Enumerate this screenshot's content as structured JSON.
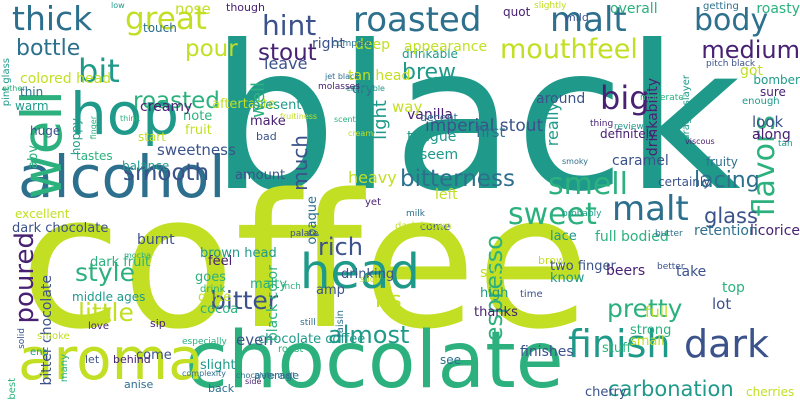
{
  "palette": {
    "yellowgreen": "#c2df23",
    "green": "#2cb17e",
    "teal": "#1f9a8a",
    "blue": "#2d708e",
    "indigo": "#3b528b",
    "purple": "#482173",
    "lightgreen": "#6ece58"
  },
  "words": [
    "black",
    "coffee",
    "chocolate",
    "aroma",
    "alcohol",
    "hop",
    "well",
    "head",
    "finish",
    "dark",
    "roasted",
    "malt",
    "thick",
    "great",
    "hint",
    "body",
    "mouthfeel",
    "bit",
    "pour",
    "stout",
    "medium",
    "brew",
    "big",
    "smell",
    "sweet",
    "malt",
    "flavors",
    "poured",
    "style",
    "little",
    "bitter",
    "rich",
    "espresso",
    "almost",
    "pretty",
    "carbonation",
    "ris",
    "bitterness",
    "lacing",
    "smooth",
    "glass",
    "much",
    "roasted",
    "bottle",
    "well",
    "nose",
    "though",
    "right",
    "deep",
    "drinkable",
    "quot",
    "slightly",
    "overall",
    "mild",
    "getting",
    "roasty",
    "low",
    "complex",
    "appearance",
    "vanilla",
    "light",
    "leave",
    "imperial stout",
    "seem",
    "around",
    "tongue",
    "got",
    "way",
    "decent",
    "first",
    "pitch black",
    "enough",
    "bomber",
    "sure",
    "look",
    "along",
    "tan",
    "really",
    "caramel",
    "drinkability",
    "dragonslayer",
    "definitely",
    "fruity",
    "certainly",
    "full bodied",
    "licorice",
    "lace",
    "left",
    "heavy",
    "opaque",
    "brown head",
    "dark chocolate",
    "burnt",
    "fruit",
    "note",
    "sweetness",
    "balance",
    "tastes",
    "hoppy",
    "colored head",
    "thin",
    "warm",
    "huge",
    "abv",
    "excellent",
    "start",
    "touch",
    "creamy",
    "aftertaste",
    "tan head",
    "dry",
    "present",
    "make",
    "bad",
    "amount",
    "even",
    "chocolate coffee",
    "drinking",
    "solid",
    "bitter chocolate",
    "middle ages",
    "dark fruit",
    "feel",
    "goes",
    "quite",
    "cocoa",
    "come",
    "slight",
    "back",
    "smoke",
    "love",
    "let",
    "behind",
    "end",
    "many",
    "best",
    "sip",
    "anise",
    "especially",
    "mocha",
    "easy",
    "drink",
    "malty",
    "black color",
    "still",
    "come",
    "raisin",
    "amp",
    "palate",
    "brown",
    "sugar",
    "high",
    "thanks",
    "time",
    "two finger",
    "know",
    "beers",
    "take",
    "lot",
    "top",
    "full",
    "strong",
    "small",
    "stuff",
    "cherries",
    "cherry",
    "see",
    "finishes",
    "roast",
    "chocolate malt",
    "complexity",
    "average",
    "dark brown",
    "yet",
    "milk",
    "butter",
    "retention",
    "better",
    "probably",
    "smoky",
    "viscous",
    "moderate",
    "review",
    "thing",
    "finger",
    "pint glass",
    "side",
    "jet black",
    "enjoyable",
    "molasses",
    "scent",
    "cream",
    "fruitiness",
    "either",
    "inch",
    "slick",
    "think",
    "going",
    "smooth"
  ]
}
